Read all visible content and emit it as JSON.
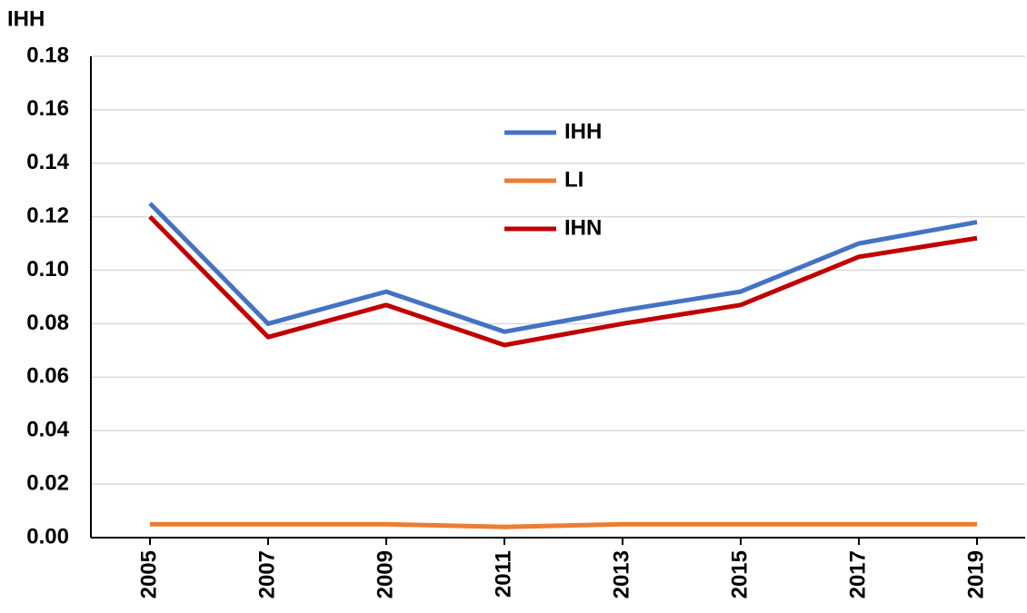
{
  "chart_data": {
    "type": "line",
    "y_label": "IHH",
    "categories": [
      "2005",
      "2007",
      "2009",
      "2011",
      "2013",
      "2015",
      "2017",
      "2019"
    ],
    "series": [
      {
        "name": "IHH",
        "color": "#4472c4",
        "values": [
          0.125,
          0.08,
          0.092,
          0.077,
          0.085,
          0.092,
          0.11,
          0.118
        ]
      },
      {
        "name": "LI",
        "color": "#ed7d31",
        "values": [
          0.005,
          0.005,
          0.005,
          0.004,
          0.005,
          0.005,
          0.005,
          0.005
        ]
      },
      {
        "name": "IHN",
        "color": "#c00000",
        "values": [
          0.12,
          0.075,
          0.087,
          0.072,
          0.08,
          0.087,
          0.105,
          0.112
        ]
      }
    ],
    "ylim": [
      0,
      0.18
    ],
    "yticks": [
      {
        "value": 0,
        "label": "0.00"
      },
      0.02,
      0.04,
      0.06,
      0.08,
      {
        "value": 0.1,
        "label": "0.10"
      },
      0.12,
      0.14,
      0.16,
      0.18
    ],
    "grid": true
  }
}
